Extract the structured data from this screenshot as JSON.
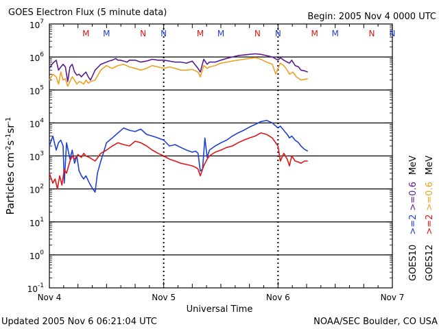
{
  "header": {
    "title": "GOES Electron Flux (5 minute data)",
    "begin": "Begin: 2005 Nov 4 0000 UTC"
  },
  "footer": {
    "updated": "Updated 2005 Nov  6 06:21:04 UTC",
    "credit": "NOAA/SEC Boulder, CO USA"
  },
  "colors": {
    "goes10": "#1c3fd6",
    "goes12": "#e01414",
    "goes10_low": "#5a1a8e",
    "goes12_low": "#f0a020"
  },
  "chart_data": {
    "type": "line",
    "xlabel": "Universal Time",
    "ylabel": "Particles cm^-2 s^-1 sr^-1",
    "yscale": "log",
    "ylim": [
      0.1,
      10000000
    ],
    "x_ticks": [
      "Nov 4",
      "Nov 5",
      "Nov 6",
      "Nov 7"
    ],
    "y_ticks": [
      {
        "base": "10",
        "exp": "7"
      },
      {
        "base": "10",
        "exp": "6"
      },
      {
        "base": "10",
        "exp": "5"
      },
      {
        "base": "10",
        "exp": "4"
      },
      {
        "base": "10",
        "exp": "3"
      },
      {
        "base": "10",
        "exp": "2"
      },
      {
        "base": "10",
        "exp": "1"
      },
      {
        "base": "10",
        "exp": "0"
      },
      {
        "base": "10",
        "exp": "-1"
      }
    ],
    "reference_line": 1000,
    "grid": "horizontal decades",
    "markers": [
      {
        "label": "M",
        "day": 0.32,
        "sat": "GOES12"
      },
      {
        "label": "M",
        "day": 0.5,
        "sat": "GOES10"
      },
      {
        "label": "N",
        "day": 0.82,
        "sat": "GOES12"
      },
      {
        "label": "N",
        "day": 1.0,
        "sat": "GOES10"
      },
      {
        "label": "M",
        "day": 1.32,
        "sat": "GOES12"
      },
      {
        "label": "M",
        "day": 1.5,
        "sat": "GOES10"
      },
      {
        "label": "N",
        "day": 1.82,
        "sat": "GOES12"
      },
      {
        "label": "N",
        "day": 2.0,
        "sat": "GOES10"
      },
      {
        "label": "M",
        "day": 2.32,
        "sat": "GOES12"
      },
      {
        "label": "M",
        "day": 2.5,
        "sat": "GOES10"
      },
      {
        "label": "N",
        "day": 2.82,
        "sat": "GOES12"
      },
      {
        "label": "N",
        "day": 3.0,
        "sat": "GOES10"
      }
    ],
    "legend": {
      "sat_goes10": "GOES10",
      "sat_goes12": "GOES12",
      "ge2_goes10": ">=2",
      "ge2_goes12": ">=2",
      "ge06_goes10": ">=0.6",
      "ge06_goes12": ">=0.6",
      "unit": "MeV"
    },
    "series": [
      {
        "name": "GOES10 >=0.6 MeV",
        "color": "#5a1a8e",
        "x": [
          0.0,
          0.03,
          0.06,
          0.08,
          0.1,
          0.12,
          0.14,
          0.16,
          0.18,
          0.2,
          0.22,
          0.24,
          0.26,
          0.28,
          0.3,
          0.32,
          0.34,
          0.36,
          0.4,
          0.45,
          0.5,
          0.52,
          0.55,
          0.58,
          0.6,
          0.62,
          0.65,
          0.68,
          0.7,
          0.75,
          0.8,
          0.85,
          0.9,
          0.95,
          1.0,
          1.05,
          1.1,
          1.15,
          1.2,
          1.25,
          1.3,
          1.32,
          1.35,
          1.38,
          1.4,
          1.45,
          1.5,
          1.55,
          1.6,
          1.65,
          1.7,
          1.75,
          1.8,
          1.85,
          1.9,
          1.95,
          2.0,
          2.02,
          2.05,
          2.08,
          2.1,
          2.12,
          2.15,
          2.18,
          2.2,
          2.23,
          2.26
        ],
        "y": [
          450000,
          650000,
          800000,
          400000,
          500000,
          600000,
          500000,
          180000,
          500000,
          600000,
          350000,
          280000,
          300000,
          250000,
          300000,
          350000,
          250000,
          200000,
          400000,
          600000,
          700000,
          750000,
          800000,
          900000,
          800000,
          800000,
          750000,
          700000,
          800000,
          800000,
          700000,
          750000,
          850000,
          800000,
          800000,
          750000,
          700000,
          700000,
          650000,
          750000,
          450000,
          350000,
          850000,
          600000,
          700000,
          700000,
          800000,
          900000,
          1000000,
          1100000,
          1150000,
          1200000,
          1250000,
          1200000,
          1100000,
          1000000,
          800000,
          950000,
          800000,
          700000,
          650000,
          800000,
          550000,
          500000,
          400000,
          380000,
          350000
        ]
      },
      {
        "name": "GOES12 >=0.6 MeV",
        "color": "#f0a020",
        "x": [
          0.0,
          0.03,
          0.06,
          0.08,
          0.1,
          0.12,
          0.14,
          0.16,
          0.18,
          0.2,
          0.22,
          0.24,
          0.26,
          0.28,
          0.3,
          0.32,
          0.34,
          0.36,
          0.4,
          0.45,
          0.5,
          0.52,
          0.55,
          0.6,
          0.65,
          0.7,
          0.75,
          0.8,
          0.85,
          0.9,
          0.95,
          1.0,
          1.05,
          1.1,
          1.15,
          1.2,
          1.25,
          1.3,
          1.32,
          1.35,
          1.38,
          1.4,
          1.45,
          1.5,
          1.55,
          1.6,
          1.65,
          1.7,
          1.75,
          1.8,
          1.85,
          1.9,
          1.95,
          1.98,
          2.0,
          2.02,
          2.05,
          2.08,
          2.1,
          2.13,
          2.16,
          2.2,
          2.26
        ],
        "y": [
          200000,
          300000,
          250000,
          150000,
          350000,
          200000,
          220000,
          130000,
          180000,
          250000,
          200000,
          150000,
          180000,
          170000,
          150000,
          200000,
          160000,
          180000,
          200000,
          400000,
          550000,
          500000,
          450000,
          550000,
          600000,
          500000,
          450000,
          400000,
          450000,
          550000,
          500000,
          450000,
          500000,
          450000,
          400000,
          400000,
          420000,
          350000,
          250000,
          550000,
          450000,
          500000,
          550000,
          650000,
          700000,
          750000,
          800000,
          850000,
          900000,
          950000,
          850000,
          700000,
          600000,
          300000,
          450000,
          650000,
          550000,
          400000,
          300000,
          350000,
          250000,
          200000,
          220000
        ]
      },
      {
        "name": "GOES10 >=2 MeV",
        "color": "#1c3fd6",
        "x": [
          0.0,
          0.03,
          0.06,
          0.08,
          0.1,
          0.12,
          0.13,
          0.15,
          0.18,
          0.2,
          0.22,
          0.24,
          0.26,
          0.28,
          0.3,
          0.32,
          0.35,
          0.38,
          0.4,
          0.42,
          0.45,
          0.48,
          0.5,
          0.55,
          0.6,
          0.65,
          0.7,
          0.75,
          0.8,
          0.85,
          0.9,
          0.95,
          1.0,
          1.05,
          1.1,
          1.15,
          1.2,
          1.25,
          1.28,
          1.3,
          1.32,
          1.34,
          1.36,
          1.38,
          1.4,
          1.45,
          1.5,
          1.55,
          1.6,
          1.65,
          1.7,
          1.75,
          1.8,
          1.85,
          1.9,
          1.95,
          2.0,
          2.02,
          2.05,
          2.08,
          2.1,
          2.12,
          2.15,
          2.18,
          2.2,
          2.23,
          2.26
        ],
        "y": [
          2000,
          4000,
          1500,
          2500,
          3000,
          2000,
          150,
          2500,
          800,
          1500,
          600,
          1000,
          350,
          250,
          200,
          250,
          150,
          100,
          80,
          300,
          700,
          1500,
          2500,
          3500,
          5000,
          7000,
          6000,
          5500,
          6500,
          4500,
          4000,
          3500,
          3000,
          2000,
          2200,
          1800,
          1500,
          1300,
          1400,
          1200,
          350,
          400,
          3500,
          900,
          1500,
          2000,
          2500,
          3000,
          4000,
          5000,
          6000,
          7500,
          9000,
          11000,
          12000,
          10000,
          7000,
          8000,
          6000,
          4500,
          3500,
          4000,
          3000,
          2500,
          2000,
          1600,
          1400
        ]
      },
      {
        "name": "GOES12 >=2 MeV",
        "color": "#e01414",
        "x": [
          0.0,
          0.03,
          0.05,
          0.07,
          0.09,
          0.11,
          0.13,
          0.15,
          0.18,
          0.2,
          0.22,
          0.25,
          0.28,
          0.3,
          0.32,
          0.35,
          0.4,
          0.45,
          0.5,
          0.55,
          0.6,
          0.65,
          0.7,
          0.75,
          0.8,
          0.85,
          0.9,
          0.95,
          1.0,
          1.05,
          1.1,
          1.15,
          1.2,
          1.25,
          1.28,
          1.3,
          1.32,
          1.35,
          1.38,
          1.4,
          1.45,
          1.5,
          1.55,
          1.6,
          1.65,
          1.7,
          1.75,
          1.8,
          1.85,
          1.9,
          1.95,
          2.0,
          2.02,
          2.05,
          2.08,
          2.1,
          2.12,
          2.15,
          2.18,
          2.2,
          2.23,
          2.26
        ],
        "y": [
          300,
          150,
          200,
          100,
          250,
          130,
          400,
          300,
          700,
          1000,
          800,
          1100,
          900,
          1200,
          1000,
          900,
          700,
          1200,
          1500,
          2000,
          2500,
          2200,
          2000,
          2800,
          2500,
          2000,
          1500,
          1200,
          1000,
          800,
          700,
          600,
          550,
          500,
          450,
          400,
          250,
          500,
          800,
          1000,
          1300,
          1500,
          1800,
          2000,
          2500,
          3000,
          3500,
          4000,
          5000,
          4500,
          3500,
          2000,
          700,
          1200,
          800,
          500,
          1000,
          700,
          650,
          600,
          700,
          700
        ]
      }
    ]
  }
}
